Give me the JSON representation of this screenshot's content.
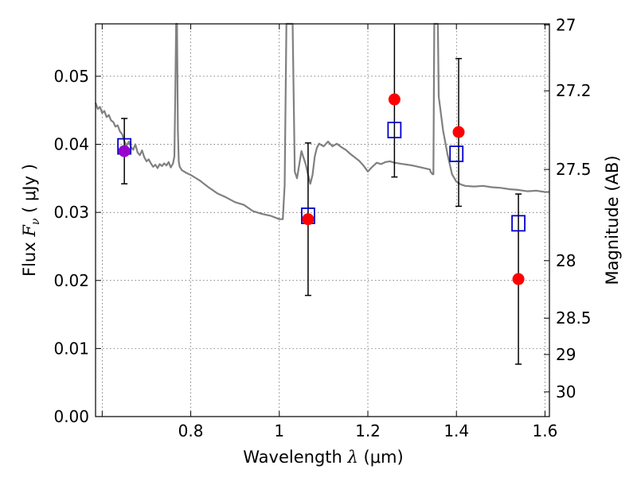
{
  "chart_data": {
    "type": "scatter",
    "xlabel": "Wavelength  λ (μm)",
    "xlabel_parts": {
      "prefix": "Wavelength  ",
      "symbol": "λ",
      "unit": " (μm)"
    },
    "ylabel": "Flux  Fν  ( μJy )",
    "ylabel_parts": {
      "prefix": "Flux  ",
      "symbol": "F",
      "subscript": "ν",
      "unit": "  ( μJy )"
    },
    "y2label": "Magnitude (AB)",
    "xlim": [
      0.585,
      1.61
    ],
    "ylim": [
      0.0,
      0.0577
    ],
    "grid": true,
    "x_ticks": [
      {
        "value": 0.6,
        "label": ""
      },
      {
        "value": 0.8,
        "label": "0.8"
      },
      {
        "value": 1.0,
        "label": "1"
      },
      {
        "value": 1.2,
        "label": "1.2"
      },
      {
        "value": 1.4,
        "label": "1.4"
      },
      {
        "value": 1.6,
        "label": "1.6"
      }
    ],
    "y_ticks": [
      {
        "value": 0.0,
        "label": "0.00"
      },
      {
        "value": 0.01,
        "label": "0.01"
      },
      {
        "value": 0.02,
        "label": "0.02"
      },
      {
        "value": 0.03,
        "label": "0.03"
      },
      {
        "value": 0.04,
        "label": "0.04"
      },
      {
        "value": 0.05,
        "label": "0.05"
      }
    ],
    "y2_ticks": [
      {
        "value": 27,
        "label": "27"
      },
      {
        "value": 27.2,
        "label": "27.2"
      },
      {
        "value": 27.5,
        "label": "27.5"
      },
      {
        "value": 28,
        "label": "28"
      },
      {
        "value": 28.5,
        "label": "28.5"
      },
      {
        "value": 29,
        "label": "29"
      },
      {
        "value": 30,
        "label": "30"
      }
    ],
    "series": [
      {
        "name": "model_spectrum",
        "kind": "line",
        "color": "#808080",
        "x": [
          0.585,
          0.59,
          0.595,
          0.6,
          0.605,
          0.61,
          0.615,
          0.62,
          0.625,
          0.63,
          0.635,
          0.64,
          0.645,
          0.65,
          0.655,
          0.66,
          0.665,
          0.67,
          0.675,
          0.68,
          0.685,
          0.69,
          0.695,
          0.7,
          0.705,
          0.71,
          0.715,
          0.72,
          0.725,
          0.73,
          0.735,
          0.74,
          0.745,
          0.75,
          0.755,
          0.76,
          0.763,
          0.765,
          0.767,
          0.769,
          0.771,
          0.773,
          0.775,
          0.78,
          0.79,
          0.8,
          0.81,
          0.82,
          0.84,
          0.86,
          0.88,
          0.9,
          0.92,
          0.94,
          0.96,
          0.98,
          1.0,
          1.008,
          1.012,
          1.016,
          1.019,
          1.022,
          1.026,
          1.03,
          1.035,
          1.04,
          1.05,
          1.06,
          1.065,
          1.07,
          1.075,
          1.08,
          1.085,
          1.09,
          1.1,
          1.11,
          1.12,
          1.13,
          1.14,
          1.15,
          1.16,
          1.17,
          1.18,
          1.19,
          1.2,
          1.21,
          1.22,
          1.23,
          1.24,
          1.25,
          1.26,
          1.28,
          1.3,
          1.32,
          1.34,
          1.342,
          1.344,
          1.346,
          1.348,
          1.35,
          1.352,
          1.354,
          1.356,
          1.358,
          1.36,
          1.37,
          1.38,
          1.39,
          1.4,
          1.41,
          1.42,
          1.44,
          1.46,
          1.48,
          1.5,
          1.52,
          1.54,
          1.56,
          1.58,
          1.6,
          1.61
        ],
        "y": [
          0.0461,
          0.0452,
          0.0455,
          0.0446,
          0.0449,
          0.044,
          0.0443,
          0.0435,
          0.0433,
          0.0426,
          0.0428,
          0.0419,
          0.0415,
          0.0405,
          0.0398,
          0.0404,
          0.0396,
          0.0392,
          0.04,
          0.0388,
          0.0384,
          0.0391,
          0.0381,
          0.0375,
          0.0378,
          0.0372,
          0.0367,
          0.037,
          0.0365,
          0.0371,
          0.0368,
          0.0372,
          0.0369,
          0.0374,
          0.0366,
          0.0372,
          0.0382,
          0.047,
          0.0577,
          0.0577,
          0.042,
          0.0375,
          0.0367,
          0.0362,
          0.0358,
          0.0355,
          0.0351,
          0.0347,
          0.0337,
          0.0328,
          0.0322,
          0.0315,
          0.0311,
          0.0302,
          0.0298,
          0.0295,
          0.029,
          0.029,
          0.034,
          0.0577,
          0.0577,
          0.0577,
          0.0577,
          0.0577,
          0.036,
          0.035,
          0.039,
          0.037,
          0.0355,
          0.0342,
          0.0355,
          0.0382,
          0.0395,
          0.0401,
          0.0397,
          0.0404,
          0.0397,
          0.0401,
          0.0396,
          0.0392,
          0.0386,
          0.0381,
          0.0376,
          0.0369,
          0.036,
          0.0367,
          0.0373,
          0.0371,
          0.0374,
          0.0375,
          0.0373,
          0.0371,
          0.0369,
          0.0366,
          0.0363,
          0.0359,
          0.0358,
          0.0356,
          0.0356,
          0.0577,
          0.0577,
          0.0577,
          0.0577,
          0.0577,
          0.047,
          0.042,
          0.0385,
          0.0356,
          0.0345,
          0.0341,
          0.0339,
          0.0338,
          0.0339,
          0.0337,
          0.0336,
          0.0334,
          0.0333,
          0.0331,
          0.0332,
          0.033,
          0.033
        ]
      },
      {
        "name": "model_band_flux",
        "kind": "open-square",
        "color": "#0000cc",
        "x": [
          0.65,
          1.065,
          1.26,
          1.4,
          1.54
        ],
        "y": [
          0.0397,
          0.0295,
          0.0421,
          0.0386,
          0.0284
        ]
      },
      {
        "name": "observed_flux",
        "kind": "filled-circle-errorbar",
        "color": "#ff0000",
        "x": [
          0.65,
          1.065,
          1.26,
          1.405,
          1.54
        ],
        "y": [
          0.039,
          0.029,
          0.0466,
          0.0418,
          0.0202
        ],
        "yerr_low": [
          0.0342,
          0.0178,
          0.0352,
          0.0309,
          0.0077
        ],
        "yerr_high": [
          0.0438,
          0.0402,
          0.0577,
          0.0526,
          0.0327
        ],
        "point_colors": [
          "#9900cc",
          "#ff0000",
          "#ff0000",
          "#ff0000",
          "#ff0000"
        ]
      }
    ]
  }
}
